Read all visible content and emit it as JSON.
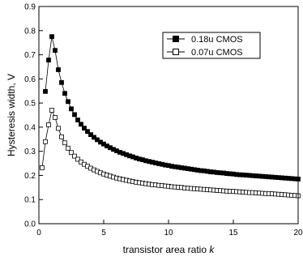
{
  "chart_data": {
    "type": "scatter",
    "xlabel": "transistor area ratio ",
    "xlabel_italic": "k",
    "ylabel": "Hysteresis width, V",
    "xlim": [
      0,
      20
    ],
    "ylim": [
      0,
      0.9
    ],
    "xticks": [
      0,
      5,
      10,
      15,
      20
    ],
    "yticks": [
      0.0,
      0.1,
      0.2,
      0.3,
      0.4,
      0.5,
      0.6,
      0.7,
      0.8,
      0.9
    ],
    "ytick_labels": [
      "0.0",
      "0.1",
      "0.2",
      "0.3",
      "0.4",
      "0.5",
      "0.6",
      "0.7",
      "0.8",
      "0.9"
    ],
    "grid": false,
    "legend_position": "top-right",
    "series": [
      {
        "name": "0.18u CMOS",
        "marker": "filled-square",
        "color": "#000000",
        "x": [
          0.5,
          0.75,
          1.0,
          1.25,
          1.5,
          1.75,
          2.0,
          2.25,
          2.5,
          2.75,
          3.0,
          3.25,
          3.5,
          3.75,
          4.0,
          4.25,
          4.5,
          4.75,
          5.0,
          5.25,
          5.5,
          5.75,
          6.0,
          6.25,
          6.5,
          6.75,
          7.0,
          7.25,
          7.5,
          7.75,
          8.0,
          8.25,
          8.5,
          8.75,
          9.0,
          9.25,
          9.5,
          9.75,
          10.0,
          10.25,
          10.5,
          10.75,
          11.0,
          11.25,
          11.5,
          11.75,
          12.0,
          12.25,
          12.5,
          12.75,
          13.0,
          13.25,
          13.5,
          13.75,
          14.0,
          14.25,
          14.5,
          14.75,
          15.0,
          15.25,
          15.5,
          15.75,
          16.0,
          16.25,
          16.5,
          16.75,
          17.0,
          17.25,
          17.5,
          17.75,
          18.0,
          18.25,
          18.5,
          18.75,
          19.0,
          19.25,
          19.5,
          19.75,
          20.0
        ],
        "y": [
          0.548,
          0.678,
          0.775,
          0.718,
          0.638,
          0.585,
          0.54,
          0.506,
          0.476,
          0.452,
          0.43,
          0.412,
          0.396,
          0.382,
          0.369,
          0.358,
          0.348,
          0.338,
          0.33,
          0.322,
          0.315,
          0.308,
          0.302,
          0.296,
          0.291,
          0.286,
          0.281,
          0.277,
          0.272,
          0.268,
          0.265,
          0.261,
          0.258,
          0.255,
          0.252,
          0.249,
          0.246,
          0.243,
          0.241,
          0.238,
          0.236,
          0.234,
          0.232,
          0.23,
          0.228,
          0.226,
          0.224,
          0.222,
          0.22,
          0.219,
          0.217,
          0.215,
          0.214,
          0.212,
          0.211,
          0.21,
          0.208,
          0.207,
          0.206,
          0.204,
          0.203,
          0.202,
          0.201,
          0.2,
          0.199,
          0.198,
          0.197,
          0.196,
          0.195,
          0.194,
          0.193,
          0.192,
          0.191,
          0.19,
          0.189,
          0.188,
          0.187,
          0.186,
          0.185
        ]
      },
      {
        "name": "0.07u CMOS",
        "marker": "open-square",
        "color": "#000000",
        "x": [
          0.25,
          0.5,
          0.75,
          1.0,
          1.25,
          1.5,
          1.75,
          2.0,
          2.25,
          2.5,
          2.75,
          3.0,
          3.25,
          3.5,
          3.75,
          4.0,
          4.25,
          4.5,
          4.75,
          5.0,
          5.25,
          5.5,
          5.75,
          6.0,
          6.25,
          6.5,
          6.75,
          7.0,
          7.25,
          7.5,
          7.75,
          8.0,
          8.25,
          8.5,
          8.75,
          9.0,
          9.25,
          9.5,
          9.75,
          10.0,
          10.25,
          10.5,
          10.75,
          11.0,
          11.25,
          11.5,
          11.75,
          12.0,
          12.25,
          12.5,
          12.75,
          13.0,
          13.25,
          13.5,
          13.75,
          14.0,
          14.25,
          14.5,
          14.75,
          15.0,
          15.25,
          15.5,
          15.75,
          16.0,
          16.25,
          16.5,
          16.75,
          17.0,
          17.25,
          17.5,
          17.75,
          18.0,
          18.25,
          18.5,
          18.75,
          19.0,
          19.25,
          19.5,
          19.75,
          20.0
        ],
        "y": [
          0.232,
          0.34,
          0.41,
          0.47,
          0.44,
          0.395,
          0.36,
          0.335,
          0.313,
          0.295,
          0.28,
          0.267,
          0.256,
          0.246,
          0.238,
          0.23,
          0.223,
          0.217,
          0.211,
          0.206,
          0.201,
          0.197,
          0.193,
          0.189,
          0.186,
          0.183,
          0.18,
          0.177,
          0.175,
          0.172,
          0.17,
          0.168,
          0.166,
          0.164,
          0.162,
          0.161,
          0.159,
          0.158,
          0.156,
          0.155,
          0.153,
          0.152,
          0.151,
          0.15,
          0.148,
          0.147,
          0.146,
          0.145,
          0.144,
          0.143,
          0.142,
          0.141,
          0.14,
          0.139,
          0.138,
          0.137,
          0.136,
          0.135,
          0.134,
          0.134,
          0.133,
          0.132,
          0.131,
          0.13,
          0.129,
          0.129,
          0.128,
          0.127,
          0.126,
          0.125,
          0.125,
          0.124,
          0.123,
          0.122,
          0.121,
          0.12,
          0.119,
          0.118,
          0.117,
          0.116
        ]
      }
    ]
  }
}
